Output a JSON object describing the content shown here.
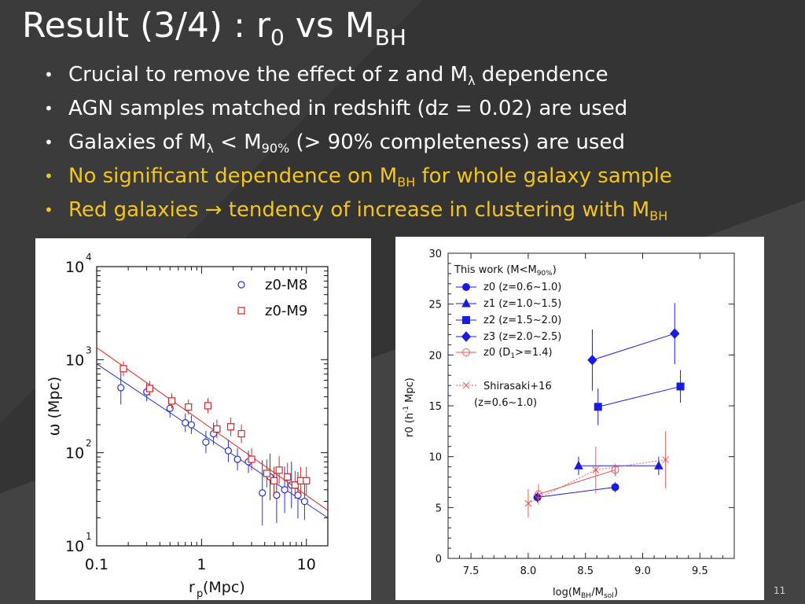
{
  "slide": {
    "title_main": "Result (3/4) : r",
    "title_sub1": "0",
    "title_mid": " vs M",
    "title_sub2": "BH",
    "page_number": "11",
    "accent_color": "#f5c518"
  },
  "bullets": [
    {
      "pre": "Crucial to remove the effect of z and M",
      "sub": "λ",
      "post": " dependence",
      "highlight": false
    },
    {
      "pre": "AGN samples matched in redshift (dz = 0.02) are used",
      "sub": "",
      "post": "",
      "highlight": false
    },
    {
      "pre": "Galaxies of M",
      "sub": "λ",
      "mid": " < M",
      "sub2": "90%",
      "post": " (> 90% completeness) are used",
      "highlight": false
    },
    {
      "pre": "No significant dependence on M",
      "sub": "BH",
      "post": " for whole galaxy sample",
      "highlight": true
    },
    {
      "pre": "Red galaxies → tendency of increase in clustering with M",
      "sub": "BH",
      "post": "",
      "highlight": true
    }
  ],
  "chart_data": [
    {
      "type": "scatter",
      "xscale": "log",
      "yscale": "log",
      "xlim": [
        0.1,
        16
      ],
      "ylim": [
        10,
        10000
      ],
      "xlabel": "r",
      "xlabel_sub": "p",
      "xlabel_unit": "  (Mpc)",
      "ylabel": "ω (Mpc)",
      "xtick_labels": [
        "0.1",
        "1",
        "10"
      ],
      "ytick_labels": [
        {
          "base": "10",
          "exp": "1"
        },
        {
          "base": "10",
          "exp": "2"
        },
        {
          "base": "10",
          "exp": "3"
        },
        {
          "base": "10",
          "exp": "4"
        }
      ],
      "legend_position": "top-right",
      "series": [
        {
          "name": "z0-M8",
          "marker": "circle",
          "color": "#2233cc",
          "x": [
            0.17,
            0.3,
            0.5,
            0.7,
            0.8,
            1.1,
            1.3,
            1.8,
            2.2,
            2.8,
            3.8,
            4.5,
            5.2,
            6.2,
            7.2,
            8.3,
            9.6
          ],
          "y": [
            500,
            450,
            300,
            210,
            200,
            130,
            160,
            105,
            85,
            80,
            37,
            55,
            35,
            40,
            45,
            35,
            30
          ],
          "err": [
            0.18,
            0.1,
            0.1,
            0.1,
            0.1,
            0.12,
            0.12,
            0.12,
            0.12,
            0.12,
            0.35,
            0.25,
            0.3,
            0.25,
            0.25,
            0.25,
            0.2
          ],
          "fit": [
            [
              0.1,
              900
            ],
            [
              16,
              20
            ]
          ]
        },
        {
          "name": "z0-M9",
          "marker": "square",
          "color": "#dd2222",
          "x": [
            0.18,
            0.32,
            0.52,
            0.75,
            1.15,
            1.4,
            1.9,
            2.4,
            3.0,
            4.2,
            4.9,
            5.5,
            6.6,
            7.8,
            8.8,
            10
          ],
          "y": [
            800,
            490,
            360,
            310,
            320,
            180,
            190,
            160,
            85,
            60,
            50,
            65,
            55,
            45,
            50,
            50
          ],
          "err": [
            0.08,
            0.08,
            0.08,
            0.08,
            0.08,
            0.1,
            0.1,
            0.1,
            0.12,
            0.15,
            0.15,
            0.15,
            0.15,
            0.15,
            0.15,
            0.15
          ],
          "fit": [
            [
              0.1,
              1350
            ],
            [
              16,
              24
            ]
          ]
        }
      ]
    },
    {
      "type": "scatter",
      "xlim": [
        7.3,
        9.8
      ],
      "ylim": [
        0,
        30
      ],
      "xticks": [
        7.5,
        8.0,
        8.5,
        9.0,
        9.5
      ],
      "xtick_labels": [
        "7.5",
        "8.0",
        "8.5",
        "9.0",
        "9.5"
      ],
      "yticks": [
        0,
        5,
        10,
        15,
        20,
        25,
        30
      ],
      "xlabel": "log(M",
      "xlabel_sub1": "BH",
      "xlabel_mid": "/M",
      "xlabel_sub2": "sol",
      "xlabel_end": ")",
      "ylabel_pre": "r0 (h",
      "ylabel_sup": "-1",
      "ylabel_post": " Mpc)",
      "legend_title": "This work (M<M",
      "legend_title_sub": "90%",
      "legend_title_end": ")",
      "legend_position": "top-left",
      "series": [
        {
          "name": "z0 (z=0.6~1.0)",
          "marker": "circle",
          "filled": true,
          "color": "#1a1ae0",
          "x": [
            8.08,
            8.76
          ],
          "y": [
            6.0,
            7.0
          ],
          "err": [
            0.5,
            0.5
          ]
        },
        {
          "name": "z1 (z=1.0~1.5)",
          "marker": "triangle",
          "filled": true,
          "color": "#1a1ae0",
          "x": [
            8.44,
            9.14
          ],
          "y": [
            9.1,
            9.1
          ],
          "err": [
            0.9,
            0.9
          ]
        },
        {
          "name": "z2 (z=1.5~2.0)",
          "marker": "square",
          "filled": true,
          "color": "#1a1ae0",
          "x": [
            8.61,
            9.33
          ],
          "y": [
            14.9,
            16.9
          ],
          "err": [
            1.8,
            1.6
          ]
        },
        {
          "name": "z3 (z=2.0~2.5)",
          "marker": "diamond",
          "filled": true,
          "color": "#1a1ae0",
          "x": [
            8.56,
            9.28
          ],
          "y": [
            19.5,
            22.1
          ],
          "err": [
            3.0,
            3.0
          ]
        },
        {
          "name": "z0 (D",
          "name_sub": "1",
          "name_end": ">=1.4)",
          "marker": "circle",
          "filled": false,
          "color": "#ee5555",
          "x": [
            8.09,
            8.76
          ],
          "y": [
            6.3,
            8.7
          ],
          "err": [
            1.0,
            0.6
          ]
        },
        {
          "name": "Shirasaki+16",
          "name_line2": "(z=0.6~1.0)",
          "marker": "x",
          "filled": false,
          "color": "#ee5555",
          "dotted": true,
          "x": [
            8.0,
            8.59,
            9.2
          ],
          "y": [
            5.4,
            8.7,
            9.7
          ],
          "err": [
            1.4,
            2.3,
            2.8
          ]
        }
      ]
    }
  ]
}
